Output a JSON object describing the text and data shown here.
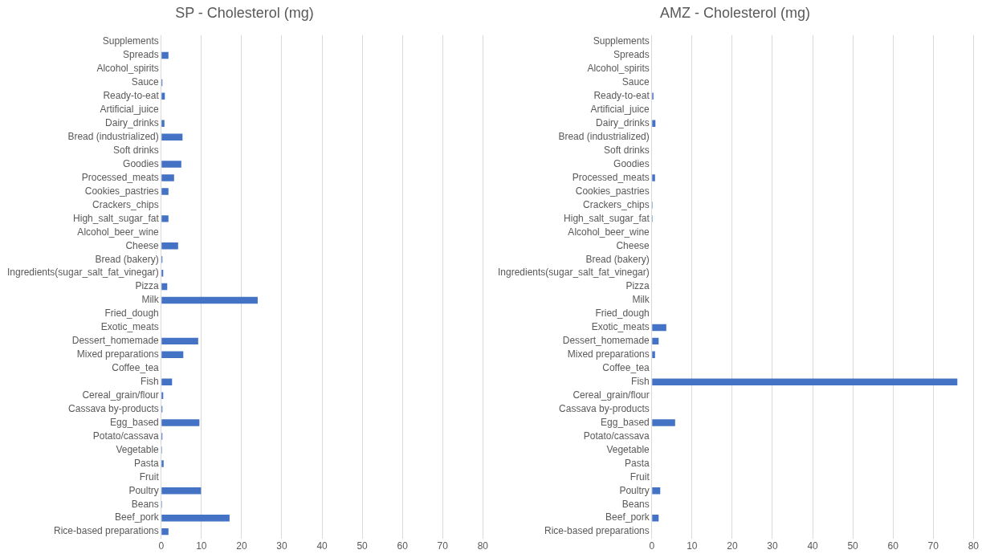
{
  "chart_data": [
    {
      "type": "bar",
      "orientation": "horizontal",
      "title": "SP - Cholesterol (mg)",
      "categories": [
        "Supplements",
        "Spreads",
        "Alcohol_spirits",
        "Sauce",
        "Ready-to-eat",
        "Artificial_juice",
        "Dairy_drinks",
        "Bread (industrialized)",
        "Soft drinks",
        "Goodies",
        "Processed_meats",
        "Cookies_pastries",
        "Crackers_chips",
        "High_salt_sugar_fat",
        "Alcohol_beer_wine",
        "Cheese",
        "Bread (bakery)",
        "Ingredients(sugar_salt_fat_vinegar)",
        "Pizza",
        "Milk",
        "Fried_dough",
        "Exotic_meats",
        "Dessert_homemade",
        "Mixed preparations",
        "Coffee_tea",
        "Fish",
        "Cereal_grain/flour",
        "Cassava by-products",
        "Egg_based",
        "Potato/cassava",
        "Vegetable",
        "Pasta",
        "Fruit",
        "Poultry",
        "Beans",
        "Beef_pork",
        "Rice-based preparations"
      ],
      "values": [
        0,
        1.8,
        0,
        0.3,
        0.9,
        0,
        0.8,
        5.3,
        0,
        5.0,
        3.2,
        1.8,
        0,
        1.8,
        0,
        4.2,
        0.3,
        0.5,
        1.5,
        24,
        0,
        0,
        9.2,
        5.5,
        0,
        2.7,
        0.5,
        0.3,
        9.5,
        0.3,
        0.2,
        0.6,
        0,
        9.9,
        0.2,
        17,
        1.8
      ],
      "color": "#4472c4",
      "xlim": [
        0,
        80
      ],
      "xticks": [
        0,
        10,
        20,
        30,
        40,
        50,
        60,
        70,
        80
      ],
      "grid": "x"
    },
    {
      "type": "bar",
      "orientation": "horizontal",
      "title": "AMZ - Cholesterol (mg)",
      "categories": [
        "Supplements",
        "Spreads",
        "Alcohol_spirits",
        "Sauce",
        "Ready-to-eat",
        "Artificial_juice",
        "Dairy_drinks",
        "Bread (industrialized)",
        "Soft drinks",
        "Goodies",
        "Processed_meats",
        "Cookies_pastries",
        "Crackers_chips",
        "High_salt_sugar_fat",
        "Alcohol_beer_wine",
        "Cheese",
        "Bread (bakery)",
        "Ingredients(sugar_salt_fat_vinegar)",
        "Pizza",
        "Milk",
        "Fried_dough",
        "Exotic_meats",
        "Dessert_homemade",
        "Mixed preparations",
        "Coffee_tea",
        "Fish",
        "Cereal_grain/flour",
        "Cassava by-products",
        "Egg_based",
        "Potato/cassava",
        "Vegetable",
        "Pasta",
        "Fruit",
        "Poultry",
        "Beans",
        "Beef_pork",
        "Rice-based preparations"
      ],
      "values": [
        0,
        0,
        0,
        0,
        0.4,
        0,
        0.9,
        0,
        0,
        0,
        0.8,
        0,
        0.2,
        0.2,
        0,
        0,
        0,
        0,
        0,
        0,
        0,
        3.6,
        1.7,
        0.8,
        0,
        76,
        0,
        0,
        5.8,
        0,
        0,
        0,
        0,
        2.1,
        0,
        1.7,
        0
      ],
      "color": "#4472c4",
      "xlim": [
        0,
        80
      ],
      "xticks": [
        0,
        10,
        20,
        30,
        40,
        50,
        60,
        70,
        80
      ],
      "grid": "x"
    }
  ]
}
